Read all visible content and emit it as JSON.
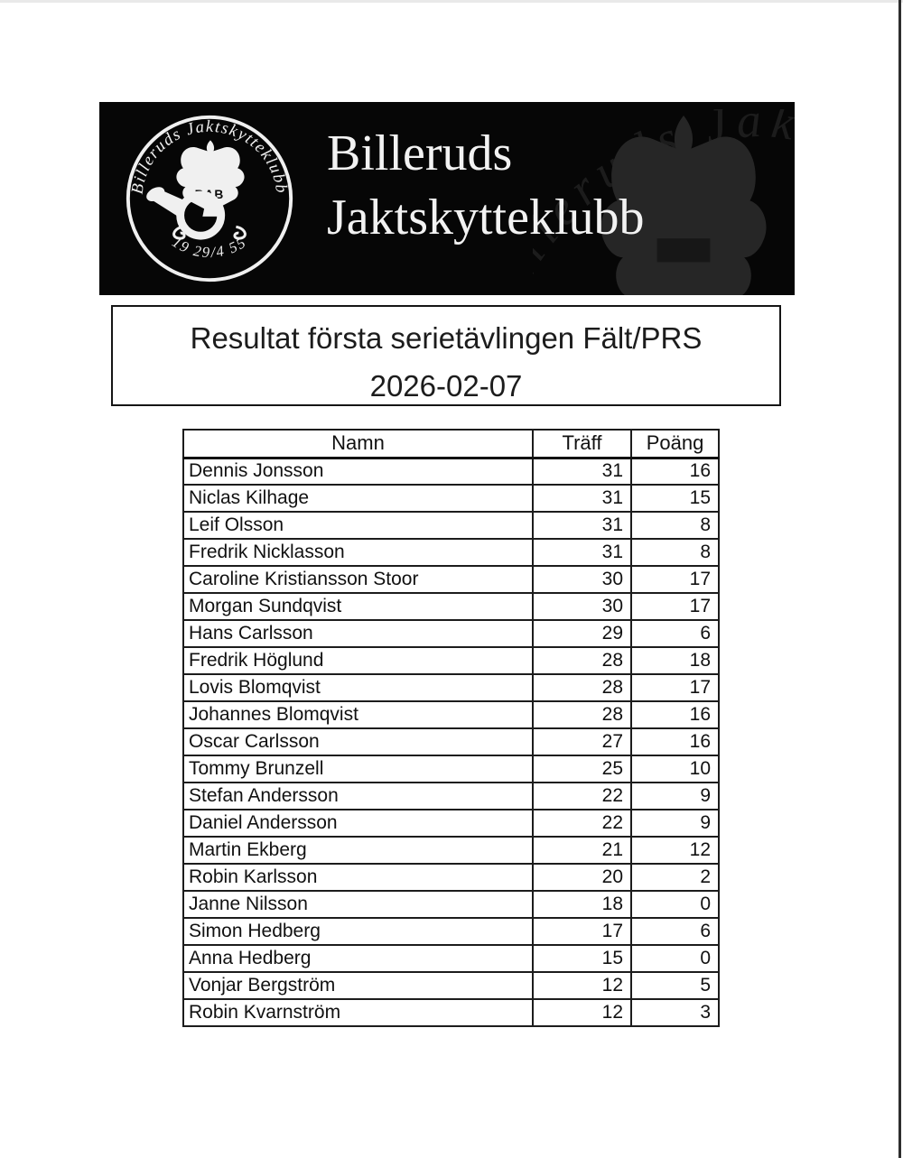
{
  "banner": {
    "club_name_line1": "Billeruds",
    "club_name_line2": "Jaktskytteklubb",
    "logo": {
      "ring_text_top": "Billeruds Jaktskytteklubb",
      "ring_text_bottom": "19 29/4 55",
      "emblem_letters": "BAB"
    },
    "watermark_text": "Billeruds Jaktskytteklubb",
    "colors": {
      "background": "#060606",
      "text": "#f2f2f2",
      "watermark_eagle": "#262626",
      "watermark_text": "#2f2f2f"
    }
  },
  "title_box": {
    "line1": "Resultat första serietävlingen Fält/PRS",
    "line2": "2026-02-07",
    "border_color": "#151515"
  },
  "table": {
    "columns": [
      "Namn",
      "Träff",
      "Poäng"
    ],
    "border_color": "#1c1c1c",
    "rows": [
      {
        "name": "Dennis Jonsson",
        "traff": "31",
        "poang": "16"
      },
      {
        "name": "Niclas Kilhage",
        "traff": "31",
        "poang": "15"
      },
      {
        "name": "Leif Olsson",
        "traff": "31",
        "poang": "8"
      },
      {
        "name": "Fredrik Nicklasson",
        "traff": "31",
        "poang": "8"
      },
      {
        "name": "Caroline Kristiansson Stoor",
        "traff": "30",
        "poang": "17"
      },
      {
        "name": "Morgan Sundqvist",
        "traff": "30",
        "poang": "17"
      },
      {
        "name": "Hans Carlsson",
        "traff": "29",
        "poang": "6"
      },
      {
        "name": "Fredrik Höglund",
        "traff": "28",
        "poang": "18"
      },
      {
        "name": "Lovis Blomqvist",
        "traff": "28",
        "poang": "17"
      },
      {
        "name": "Johannes Blomqvist",
        "traff": "28",
        "poang": "16"
      },
      {
        "name": "Oscar Carlsson",
        "traff": "27",
        "poang": "16"
      },
      {
        "name": "Tommy Brunzell",
        "traff": "25",
        "poang": "10"
      },
      {
        "name": "Stefan Andersson",
        "traff": "22",
        "poang": "9"
      },
      {
        "name": "Daniel Andersson",
        "traff": "22",
        "poang": "9"
      },
      {
        "name": "Martin Ekberg",
        "traff": "21",
        "poang": "12"
      },
      {
        "name": "Robin Karlsson",
        "traff": "20",
        "poang": "2"
      },
      {
        "name": "Janne Nilsson",
        "traff": "18",
        "poang": "0"
      },
      {
        "name": "Simon Hedberg",
        "traff": "17",
        "poang": "6"
      },
      {
        "name": "Anna Hedberg",
        "traff": "15",
        "poang": "0"
      },
      {
        "name": "Vonjar Bergström",
        "traff": "12",
        "poang": "5"
      },
      {
        "name": "Robin Kvarnström",
        "traff": "12",
        "poang": "3"
      }
    ]
  }
}
